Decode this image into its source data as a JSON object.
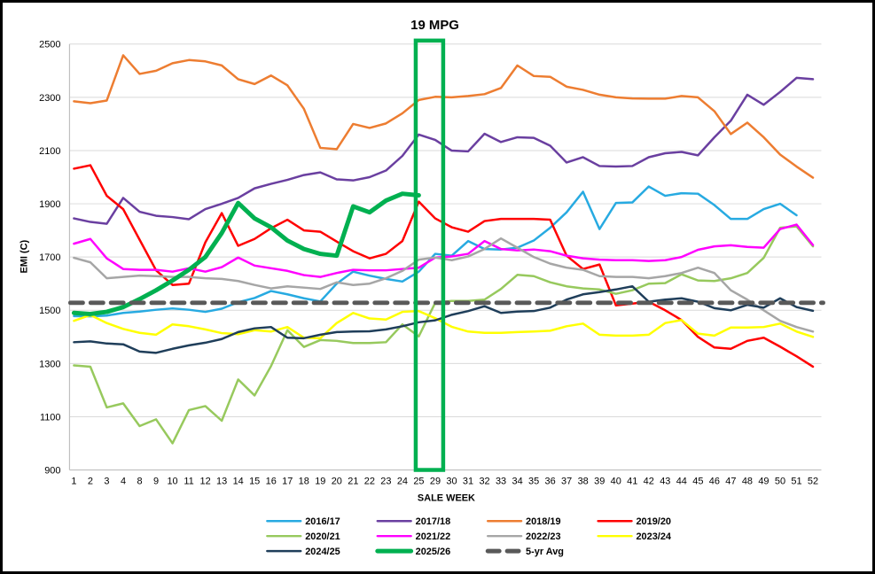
{
  "chart_data": {
    "type": "line",
    "title": "19 MPG",
    "xlabel": "SALE WEEK",
    "ylabel": "EMI (C)",
    "ylim": [
      900,
      2500
    ],
    "ytick_step": 200,
    "grid": true,
    "legend_position": "bottom",
    "gridline_color": "#D9D9D9",
    "axis_line_color": "#BFBFBF",
    "categories": [
      "1",
      "2",
      "3",
      "4",
      "8",
      "9",
      "10",
      "11",
      "12",
      "13",
      "14",
      "15",
      "16",
      "17",
      "18",
      "19",
      "20",
      "21",
      "22",
      "23",
      "24",
      "25",
      "29",
      "30",
      "31",
      "32",
      "33",
      "34",
      "35",
      "36",
      "37",
      "38",
      "39",
      "40",
      "41",
      "42",
      "43",
      "44",
      "45",
      "46",
      "47",
      "48",
      "49",
      "50",
      "51",
      "52"
    ],
    "series": [
      {
        "name": "2016/17",
        "color": "#27AAE1",
        "width": 2.5,
        "values": [
          1478,
          1477,
          1480,
          1490,
          1495,
          1502,
          1507,
          1502,
          1494,
          1506,
          1530,
          1546,
          1572,
          1560,
          1545,
          1533,
          1600,
          1645,
          1630,
          1618,
          1608,
          1645,
          1712,
          1705,
          1760,
          1730,
          1728,
          1735,
          1762,
          1810,
          1868,
          1945,
          1805,
          1903,
          1905,
          1965,
          1930,
          1940,
          1938,
          1895,
          1843,
          1843,
          1880,
          1900,
          1857,
          null
        ]
      },
      {
        "name": "2017/18",
        "color": "#6A3FA0",
        "width": 2.5,
        "values": [
          1845,
          1832,
          1825,
          1922,
          1870,
          1855,
          1850,
          1842,
          1880,
          1900,
          1922,
          1958,
          1975,
          1990,
          2008,
          2018,
          1992,
          1988,
          2000,
          2025,
          2080,
          2160,
          2140,
          2100,
          2097,
          2163,
          2132,
          2150,
          2148,
          2118,
          2055,
          2075,
          2042,
          2040,
          2042,
          2075,
          2090,
          2095,
          2082,
          2150,
          2212,
          2310,
          2272,
          2320,
          2373,
          2368
        ]
      },
      {
        "name": "2018/19",
        "color": "#ED7D31",
        "width": 2.5,
        "values": [
          2285,
          2278,
          2288,
          2458,
          2388,
          2400,
          2428,
          2440,
          2435,
          2420,
          2368,
          2350,
          2382,
          2345,
          2257,
          2110,
          2105,
          2200,
          2185,
          2202,
          2240,
          2290,
          2302,
          2300,
          2305,
          2312,
          2335,
          2420,
          2380,
          2377,
          2340,
          2328,
          2310,
          2300,
          2296,
          2295,
          2295,
          2305,
          2300,
          2248,
          2162,
          2205,
          2150,
          2085,
          2040,
          1998
        ]
      },
      {
        "name": "2019/20",
        "color": "#FF0000",
        "width": 2.5,
        "values": [
          2032,
          2045,
          1930,
          1880,
          1765,
          1650,
          1595,
          1600,
          1755,
          1865,
          1742,
          1768,
          1808,
          1840,
          1800,
          1795,
          1758,
          1722,
          1695,
          1712,
          1760,
          1908,
          1845,
          1812,
          1795,
          1835,
          1843,
          1843,
          1843,
          1840,
          1705,
          1655,
          1672,
          1518,
          1525,
          1532,
          1500,
          1463,
          1400,
          1360,
          1355,
          1385,
          1397,
          1363,
          1327,
          1288
        ]
      },
      {
        "name": "2020/21",
        "color": "#97C95D",
        "width": 2.5,
        "values": [
          1293,
          1288,
          1135,
          1150,
          1065,
          1090,
          1000,
          1125,
          1140,
          1085,
          1240,
          1180,
          1290,
          1425,
          1362,
          1388,
          1385,
          1377,
          1377,
          1380,
          1447,
          1402,
          1528,
          1535,
          1535,
          1540,
          1580,
          1633,
          1628,
          1605,
          1590,
          1582,
          1578,
          1562,
          1575,
          1600,
          1602,
          1635,
          1612,
          1610,
          1620,
          1640,
          1697,
          1810,
          1815,
          1740
        ]
      },
      {
        "name": "2021/22",
        "color": "#FF00FF",
        "width": 2.5,
        "values": [
          1750,
          1768,
          1695,
          1655,
          1652,
          1652,
          1645,
          1658,
          1645,
          1662,
          1698,
          1668,
          1658,
          1648,
          1632,
          1625,
          1640,
          1652,
          1650,
          1650,
          1655,
          1660,
          1698,
          1702,
          1712,
          1760,
          1730,
          1725,
          1728,
          1722,
          1705,
          1695,
          1690,
          1688,
          1688,
          1685,
          1688,
          1700,
          1727,
          1740,
          1744,
          1738,
          1735,
          1805,
          1822,
          1745
        ]
      },
      {
        "name": "2022/23",
        "color": "#A6A6A6",
        "width": 2.5,
        "values": [
          1697,
          1680,
          1620,
          1625,
          1630,
          1628,
          1625,
          1625,
          1620,
          1618,
          1610,
          1595,
          1582,
          1590,
          1585,
          1580,
          1605,
          1595,
          1600,
          1620,
          1648,
          1690,
          1698,
          1688,
          1702,
          1730,
          1770,
          1735,
          1700,
          1675,
          1660,
          1652,
          1628,
          1625,
          1625,
          1620,
          1628,
          1640,
          1660,
          1640,
          1575,
          1540,
          1500,
          1460,
          1437,
          1420
        ]
      },
      {
        "name": "2023/24",
        "color": "#FFFF00",
        "width": 2.5,
        "values": [
          1460,
          1482,
          1452,
          1430,
          1415,
          1408,
          1447,
          1440,
          1428,
          1414,
          1410,
          1425,
          1420,
          1437,
          1397,
          1395,
          1452,
          1490,
          1469,
          1465,
          1494,
          1497,
          1470,
          1438,
          1420,
          1415,
          1415,
          1418,
          1420,
          1423,
          1440,
          1450,
          1408,
          1405,
          1405,
          1408,
          1452,
          1463,
          1412,
          1405,
          1435,
          1435,
          1437,
          1450,
          1420,
          1400
        ]
      },
      {
        "name": "2024/25",
        "color": "#1F3E5A",
        "width": 2.5,
        "values": [
          1380,
          1383,
          1375,
          1372,
          1345,
          1340,
          1355,
          1368,
          1378,
          1392,
          1418,
          1432,
          1437,
          1397,
          1395,
          1408,
          1418,
          1420,
          1421,
          1428,
          1440,
          1455,
          1462,
          1483,
          1497,
          1515,
          1490,
          1495,
          1497,
          1510,
          1540,
          1560,
          1568,
          1578,
          1590,
          1532,
          1540,
          1545,
          1532,
          1508,
          1500,
          1520,
          1510,
          1545,
          1512,
          1498
        ]
      },
      {
        "name": "2025/26",
        "color": "#00B050",
        "width": 5,
        "values": [
          1490,
          1486,
          1494,
          1512,
          1542,
          1575,
          1612,
          1652,
          1700,
          1790,
          1903,
          1845,
          1812,
          1762,
          1730,
          1712,
          1705,
          1890,
          1868,
          1912,
          1938,
          1932,
          null,
          null,
          null,
          null,
          null,
          null,
          null,
          null,
          null,
          null,
          null,
          null,
          null,
          null,
          null,
          null,
          null,
          null,
          null,
          null,
          null,
          null,
          null,
          null
        ]
      },
      {
        "name": "5-yr Avg",
        "color": "#595959",
        "width": 5,
        "dash": "14 9",
        "extend": true,
        "values": [
          1528,
          1528,
          1528,
          1528,
          1528,
          1528,
          1528,
          1528,
          1528,
          1528,
          1528,
          1528,
          1528,
          1528,
          1528,
          1528,
          1528,
          1528,
          1528,
          1528,
          1528,
          1528,
          1528,
          1528,
          1528,
          1528,
          1528,
          1528,
          1528,
          1528,
          1528,
          1528,
          1528,
          1528,
          1528,
          1528,
          1528,
          1528,
          1528,
          1528,
          1528,
          1528,
          1528,
          1528,
          1528,
          1528
        ]
      }
    ],
    "annotations": {
      "highlight_box": {
        "from_category": "25",
        "to_category": "29",
        "color": "#00B050"
      }
    },
    "yticks": [
      900,
      1100,
      1300,
      1500,
      1700,
      1900,
      2100,
      2300,
      2500
    ]
  },
  "legend": {
    "items": [
      {
        "label": "2016/17",
        "color": "#27AAE1",
        "width": 2.5,
        "row": 0,
        "col": 0
      },
      {
        "label": "2017/18",
        "color": "#6A3FA0",
        "width": 2.5,
        "row": 0,
        "col": 1
      },
      {
        "label": "2018/19",
        "color": "#ED7D31",
        "width": 2.5,
        "row": 0,
        "col": 2
      },
      {
        "label": "2019/20",
        "color": "#FF0000",
        "width": 2.5,
        "row": 0,
        "col": 3
      },
      {
        "label": "2020/21",
        "color": "#97C95D",
        "width": 2.5,
        "row": 1,
        "col": 0
      },
      {
        "label": "2021/22",
        "color": "#FF00FF",
        "width": 2.5,
        "row": 1,
        "col": 1
      },
      {
        "label": "2022/23",
        "color": "#A6A6A6",
        "width": 2.5,
        "row": 1,
        "col": 2
      },
      {
        "label": "2023/24",
        "color": "#FFFF00",
        "width": 2.5,
        "row": 1,
        "col": 3
      },
      {
        "label": "2024/25",
        "color": "#1F3E5A",
        "width": 2.5,
        "row": 2,
        "col": 0
      },
      {
        "label": "2025/26",
        "color": "#00B050",
        "width": 5,
        "row": 2,
        "col": 1
      },
      {
        "label": "5-yr Avg",
        "color": "#595959",
        "width": 5,
        "dash": "13 9",
        "row": 2,
        "col": 2
      }
    ]
  }
}
